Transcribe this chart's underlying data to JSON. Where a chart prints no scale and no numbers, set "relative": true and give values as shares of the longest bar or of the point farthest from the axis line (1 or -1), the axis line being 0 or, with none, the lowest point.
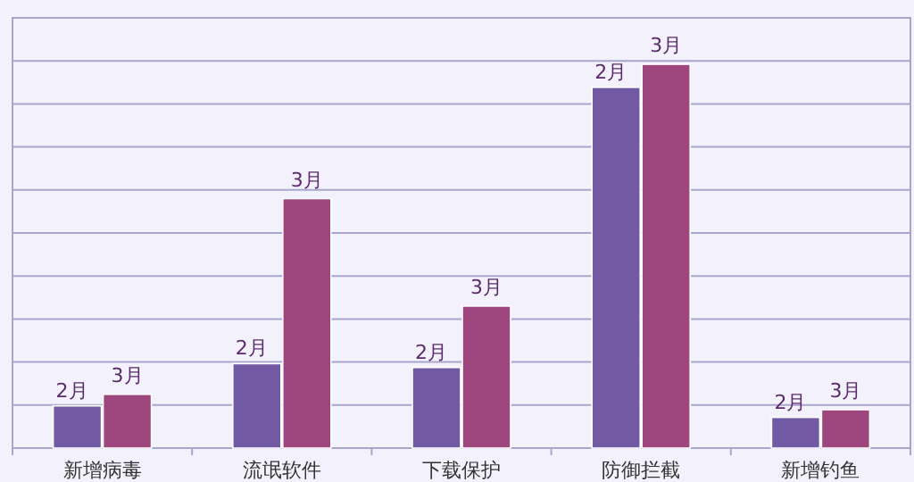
{
  "chart_data": {
    "type": "bar",
    "relative": true,
    "grid": "y",
    "legend": false,
    "categories": [
      "新增病毒",
      "流氓软件",
      "下载保护",
      "防御拦截",
      "新增钓鱼"
    ],
    "series": [
      {
        "name": "2月",
        "color": "#7159a3",
        "values": [
          0.11,
          0.22,
          0.21,
          0.94,
          0.08
        ]
      },
      {
        "name": "3月",
        "color": "#9e467e",
        "values": [
          0.14,
          0.65,
          0.37,
          1,
          0.1
        ]
      }
    ]
  }
}
